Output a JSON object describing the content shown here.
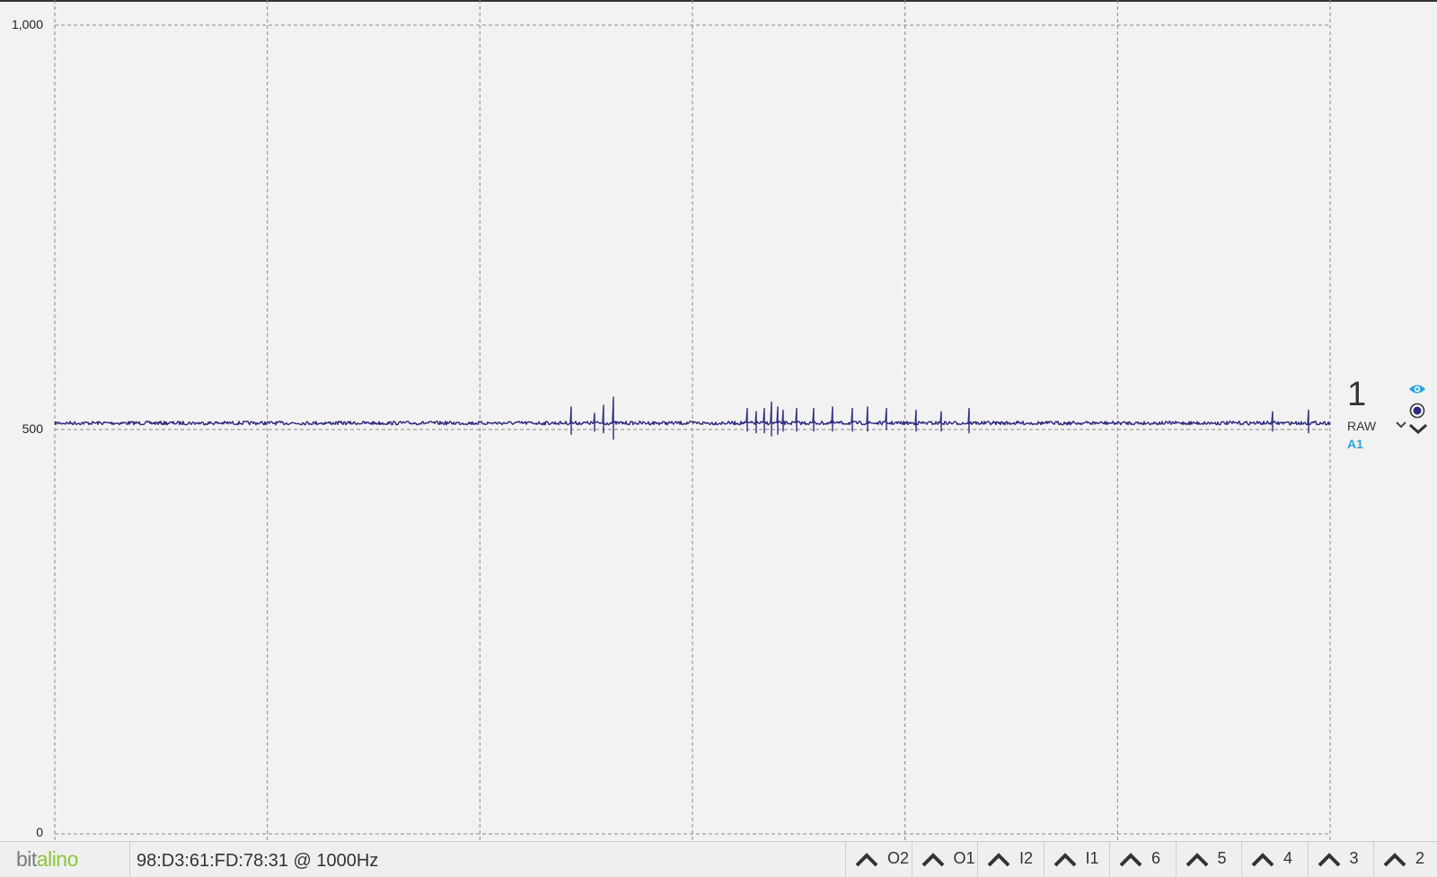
{
  "chart_data": {
    "type": "line",
    "y_axis": {
      "ylim": [
        0,
        1000
      ],
      "ticks": [
        0,
        500,
        1000
      ],
      "tick_labels": [
        "0",
        "500",
        "1,000"
      ]
    },
    "x_grid_divisions": 6,
    "grid": true,
    "reference_line_value": 500,
    "series": [
      {
        "color": "#2e2a7f",
        "baseline": 508,
        "noise_amplitude": 2,
        "spikes": [
          {
            "x": 0.405,
            "up": 20,
            "down": 14
          },
          {
            "x": 0.423,
            "up": 12,
            "down": 10
          },
          {
            "x": 0.43,
            "up": 22,
            "down": 12
          },
          {
            "x": 0.438,
            "up": 32,
            "down": 20
          },
          {
            "x": 0.543,
            "up": 18,
            "down": 10
          },
          {
            "x": 0.55,
            "up": 14,
            "down": 12
          },
          {
            "x": 0.556,
            "up": 18,
            "down": 12
          },
          {
            "x": 0.562,
            "up": 26,
            "down": 16
          },
          {
            "x": 0.567,
            "up": 20,
            "down": 14
          },
          {
            "x": 0.571,
            "up": 16,
            "down": 10
          },
          {
            "x": 0.582,
            "up": 18,
            "down": 10
          },
          {
            "x": 0.595,
            "up": 18,
            "down": 10
          },
          {
            "x": 0.61,
            "up": 20,
            "down": 10
          },
          {
            "x": 0.625,
            "up": 18,
            "down": 10
          },
          {
            "x": 0.637,
            "up": 20,
            "down": 10
          },
          {
            "x": 0.652,
            "up": 18,
            "down": 8
          },
          {
            "x": 0.675,
            "up": 16,
            "down": 10
          },
          {
            "x": 0.695,
            "up": 14,
            "down": 10
          },
          {
            "x": 0.717,
            "up": 18,
            "down": 12
          },
          {
            "x": 0.955,
            "up": 14,
            "down": 10
          },
          {
            "x": 0.983,
            "up": 16,
            "down": 12
          }
        ]
      }
    ]
  },
  "channel": {
    "number": "1",
    "mode": "RAW",
    "source": "A1",
    "source_color": "#29a4dc",
    "icons": [
      "eye-icon",
      "radio-icon",
      "chevron-down-icon"
    ]
  },
  "bottom_bar": {
    "logo_bit": "bit",
    "logo_alino": "alino",
    "device_info": "98:D3:61:FD:78:31 @ 1000Hz",
    "io_buttons": [
      {
        "label": "O2",
        "icon": "chevron-up-icon"
      },
      {
        "label": "O1",
        "icon": "chevron-up-icon"
      },
      {
        "label": "I2",
        "icon": "chevron-up-icon"
      },
      {
        "label": "I1",
        "icon": "chevron-up-icon"
      },
      {
        "label": "6",
        "icon": "chevron-up-icon"
      },
      {
        "label": "5",
        "icon": "chevron-up-icon"
      },
      {
        "label": "4",
        "icon": "chevron-up-icon"
      },
      {
        "label": "3",
        "icon": "chevron-up-icon"
      },
      {
        "label": "2",
        "icon": "chevron-up-icon"
      }
    ]
  },
  "colors": {
    "background": "#f2f2f2",
    "signal": "#2e2a7f",
    "accent": "#29a4dc",
    "logo_green": "#8cc63f"
  }
}
